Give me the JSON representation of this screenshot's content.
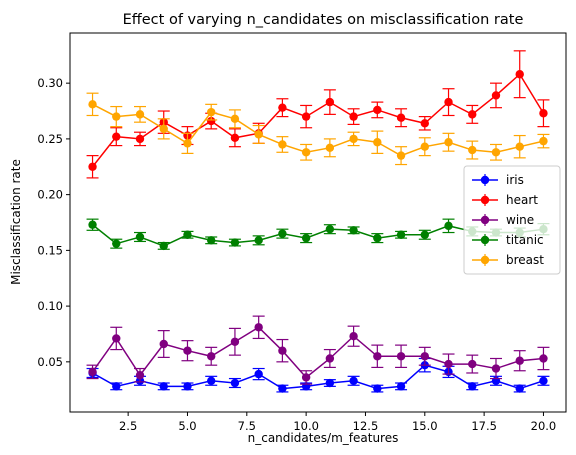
{
  "chart_data": {
    "type": "line",
    "title": "Effect of varying n_candidates on misclassification rate",
    "xlabel": "n_candidates/m_features",
    "ylabel": "Misclassification rate",
    "xlim": [
      0.05,
      20.95
    ],
    "ylim": [
      0.005,
      0.345
    ],
    "xticks": [
      2.5,
      5.0,
      7.5,
      10.0,
      12.5,
      15.0,
      17.5,
      20.0
    ],
    "xtick_labels": [
      "2.5",
      "5.0",
      "7.5",
      "10.0",
      "12.5",
      "15.0",
      "17.5",
      "20.0"
    ],
    "yticks": [
      0.05,
      0.1,
      0.15,
      0.2,
      0.25,
      0.3
    ],
    "ytick_labels": [
      "0.05",
      "0.10",
      "0.15",
      "0.20",
      "0.25",
      "0.30"
    ],
    "grid": false,
    "legend_position": "center-right",
    "x": [
      1,
      2,
      3,
      4,
      5,
      6,
      7,
      8,
      9,
      10,
      11,
      12,
      13,
      14,
      15,
      16,
      17,
      18,
      19,
      20
    ],
    "series": [
      {
        "name": "iris",
        "color": "#0000ff",
        "values": [
          0.04,
          0.028,
          0.033,
          0.028,
          0.028,
          0.033,
          0.031,
          0.039,
          0.026,
          0.028,
          0.031,
          0.033,
          0.026,
          0.028,
          0.047,
          0.041,
          0.028,
          0.033,
          0.026,
          0.033
        ],
        "errors": [
          0.004,
          0.003,
          0.004,
          0.003,
          0.003,
          0.004,
          0.004,
          0.005,
          0.003,
          0.003,
          0.003,
          0.004,
          0.003,
          0.003,
          0.006,
          0.005,
          0.003,
          0.004,
          0.003,
          0.004
        ]
      },
      {
        "name": "heart",
        "color": "#ff0000",
        "values": [
          0.225,
          0.252,
          0.25,
          0.265,
          0.253,
          0.266,
          0.251,
          0.255,
          0.278,
          0.27,
          0.283,
          0.27,
          0.276,
          0.269,
          0.264,
          0.283,
          0.272,
          0.289,
          0.308,
          0.273
        ],
        "errors": [
          0.01,
          0.008,
          0.006,
          0.01,
          0.008,
          0.007,
          0.008,
          0.009,
          0.008,
          0.01,
          0.011,
          0.007,
          0.007,
          0.008,
          0.006,
          0.012,
          0.008,
          0.011,
          0.021,
          0.012
        ]
      },
      {
        "name": "wine",
        "color": "#800080",
        "values": [
          0.041,
          0.071,
          0.038,
          0.066,
          0.06,
          0.055,
          0.068,
          0.081,
          0.06,
          0.036,
          0.053,
          0.073,
          0.055,
          0.055,
          0.055,
          0.048,
          0.048,
          0.044,
          0.051,
          0.053
        ],
        "errors": [
          0.006,
          0.01,
          0.006,
          0.012,
          0.009,
          0.008,
          0.012,
          0.01,
          0.01,
          0.006,
          0.008,
          0.009,
          0.01,
          0.01,
          0.008,
          0.009,
          0.008,
          0.009,
          0.009,
          0.01
        ]
      },
      {
        "name": "titanic",
        "color": "#008000",
        "values": [
          0.173,
          0.156,
          0.162,
          0.154,
          0.164,
          0.159,
          0.157,
          0.159,
          0.165,
          0.161,
          0.169,
          0.168,
          0.161,
          0.164,
          0.164,
          0.172,
          0.167,
          0.166,
          0.166,
          0.169
        ],
        "errors": [
          0.005,
          0.004,
          0.004,
          0.003,
          0.003,
          0.003,
          0.003,
          0.004,
          0.004,
          0.004,
          0.004,
          0.003,
          0.004,
          0.003,
          0.004,
          0.006,
          0.004,
          0.003,
          0.004,
          0.005
        ]
      },
      {
        "name": "breast",
        "color": "#ffa500",
        "values": [
          0.281,
          0.27,
          0.272,
          0.259,
          0.246,
          0.274,
          0.268,
          0.254,
          0.245,
          0.238,
          0.242,
          0.25,
          0.247,
          0.235,
          0.243,
          0.247,
          0.24,
          0.238,
          0.243,
          0.248
        ],
        "errors": [
          0.01,
          0.009,
          0.007,
          0.009,
          0.009,
          0.007,
          0.008,
          0.008,
          0.007,
          0.007,
          0.008,
          0.006,
          0.01,
          0.008,
          0.008,
          0.008,
          0.008,
          0.007,
          0.01,
          0.006
        ]
      }
    ]
  }
}
